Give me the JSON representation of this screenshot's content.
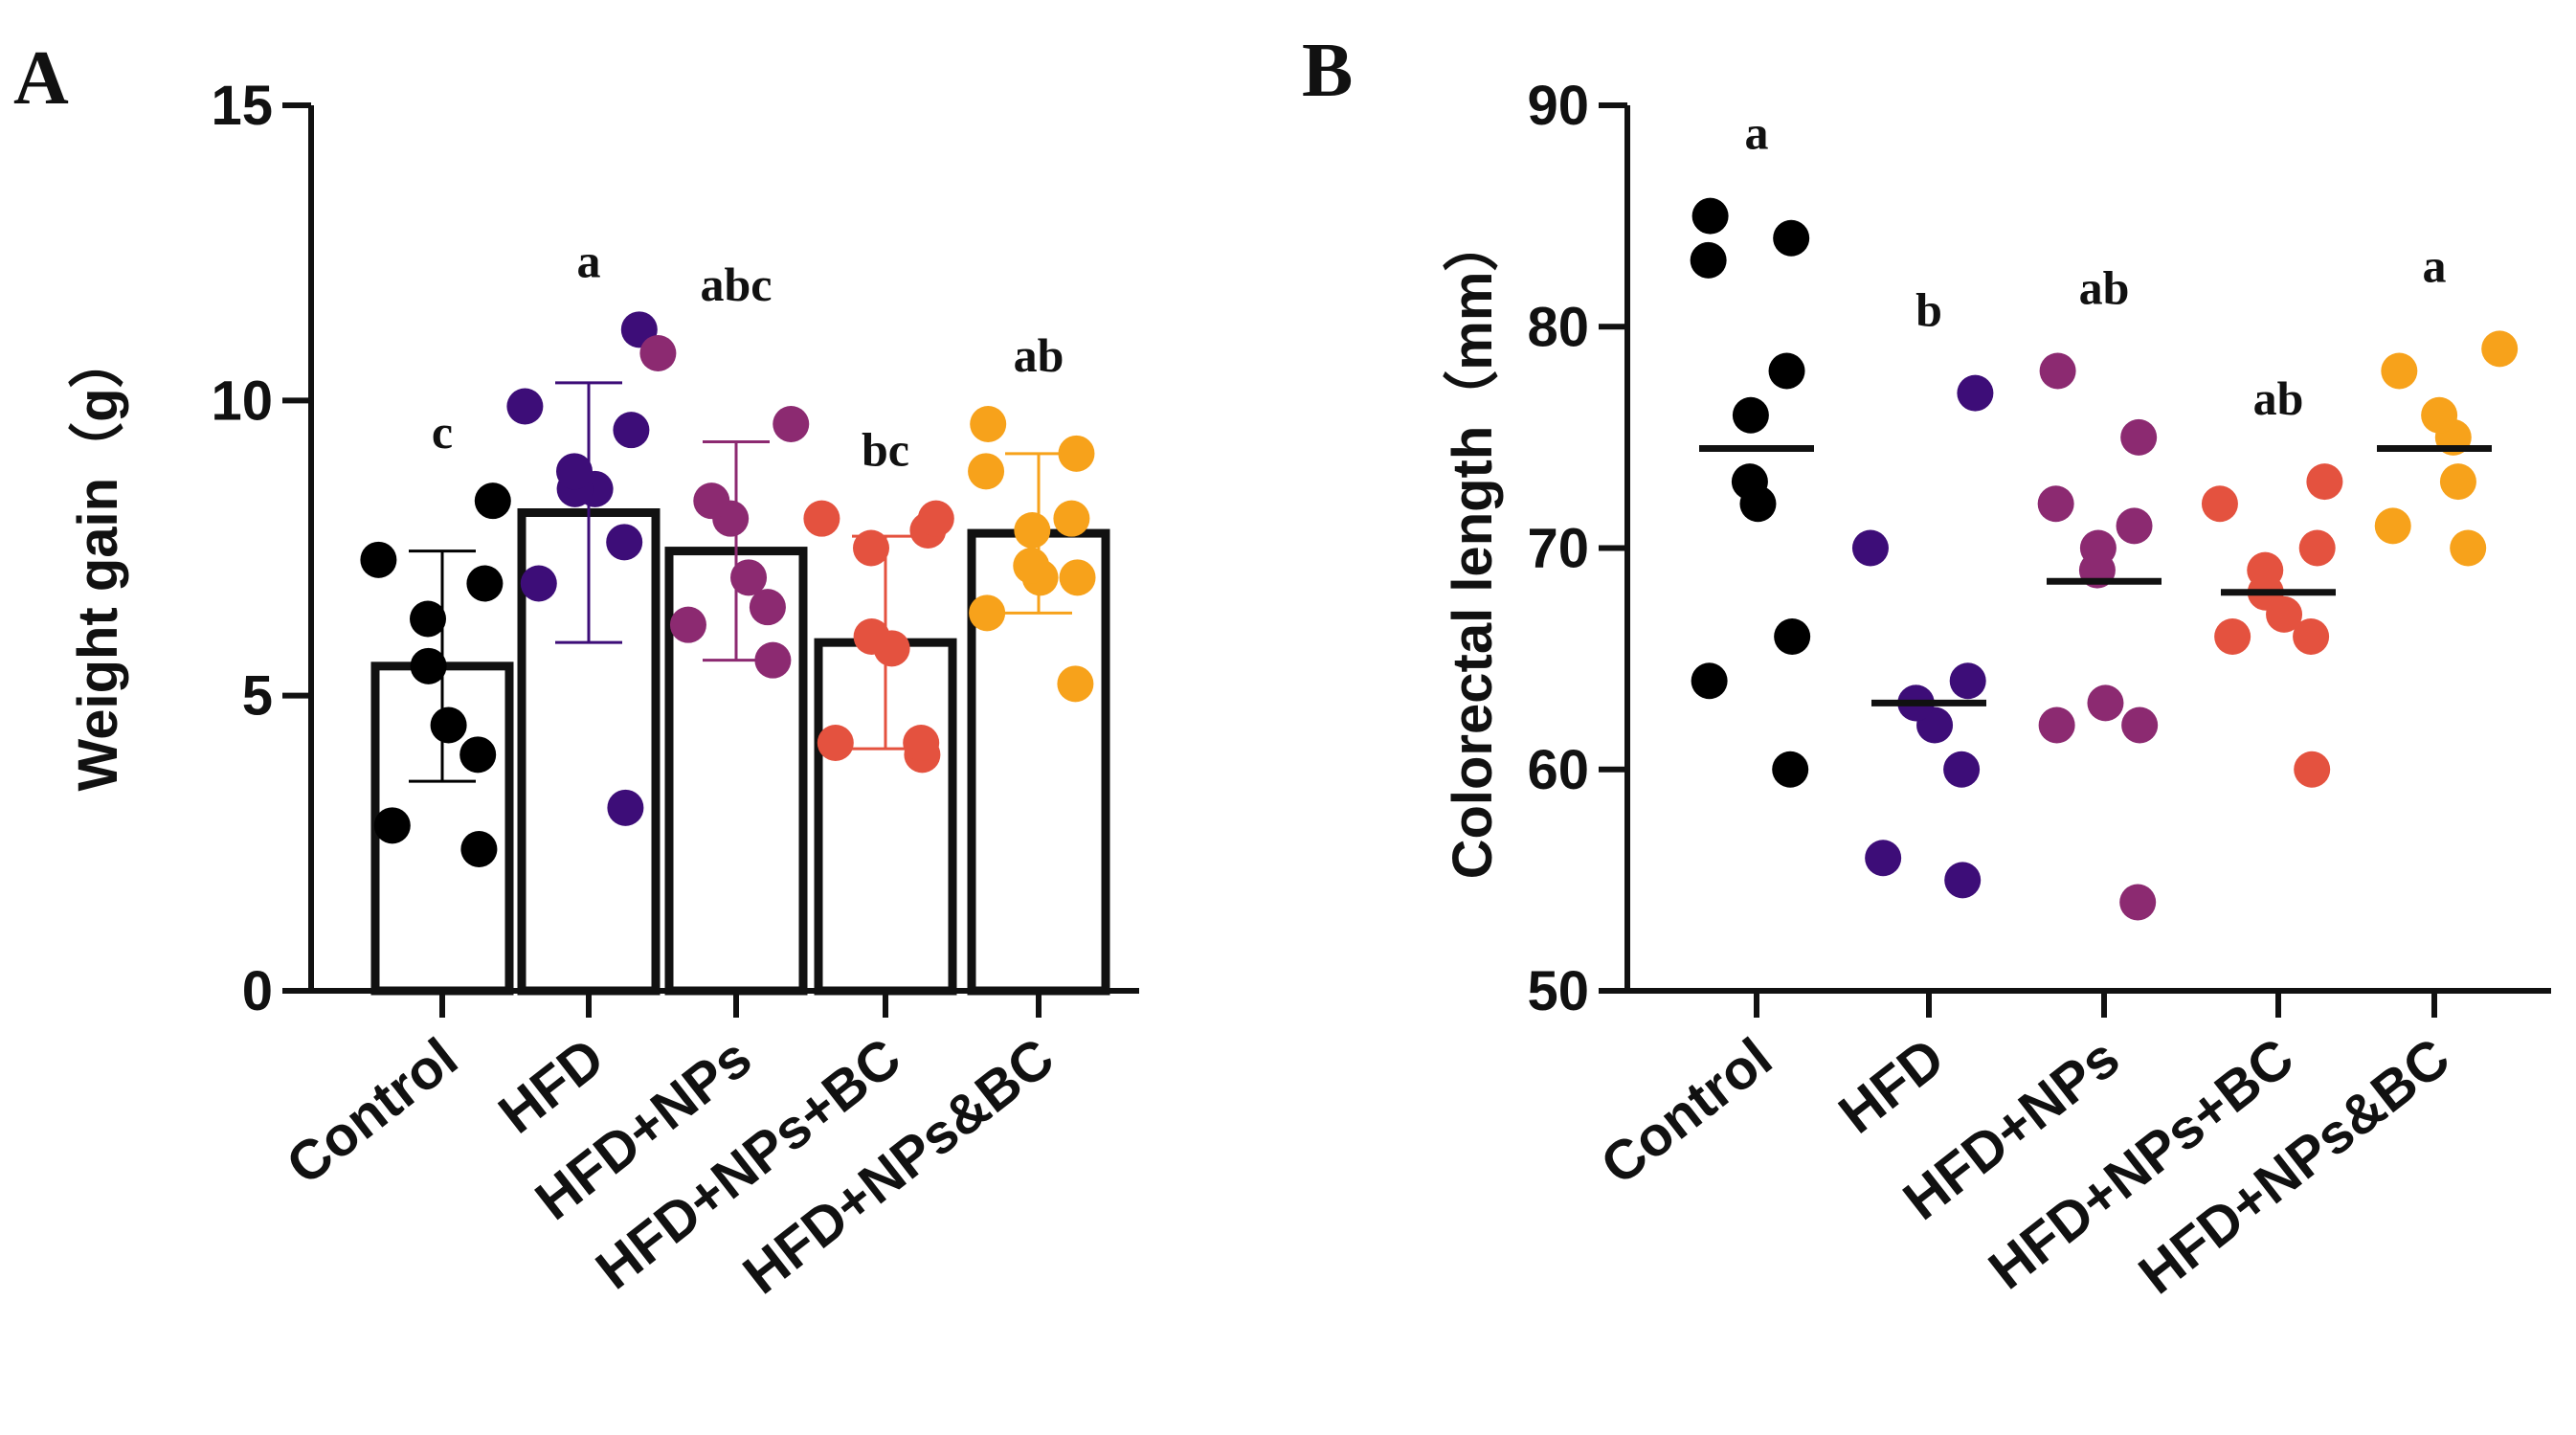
{
  "figure": {
    "panel_a_label": "A",
    "panel_b_label": "B"
  },
  "colors": {
    "axis": "#111111",
    "Control": "#000000",
    "HFD": "#3d0d78",
    "HFD+NPs": "#8c2a71",
    "HFD+NPs+BC": "#e4523f",
    "HFD+NPs&BC": "#f7a21b"
  },
  "chart_data": [
    {
      "type": "bar",
      "panel": "A",
      "title": "",
      "xlabel": "",
      "ylabel": "Weight gain（g）",
      "ylim": [
        0,
        15
      ],
      "yticks": [
        0,
        5,
        10,
        15
      ],
      "categories": [
        "Control",
        "HFD",
        "HFD+NPs",
        "HFD+NPs+BC",
        "HFD+NPs&BC"
      ],
      "values": [
        5.5,
        8.1,
        7.45,
        5.9,
        7.75
      ],
      "sd": [
        1.95,
        2.2,
        1.85,
        1.8,
        1.35
      ],
      "significance": [
        "c",
        "a",
        "abc",
        "bc",
        "ab"
      ],
      "points": [
        [
          2.4,
          2.8,
          4.0,
          4.5,
          5.5,
          6.3,
          6.9,
          7.3,
          8.3
        ],
        [
          3.1,
          6.9,
          7.6,
          8.5,
          8.5,
          8.8,
          9.5,
          9.9,
          11.2
        ],
        [
          5.6,
          6.2,
          6.5,
          7.0,
          8.0,
          8.3,
          9.6,
          10.8
        ],
        [
          4.0,
          4.2,
          4.2,
          5.8,
          6.0,
          7.5,
          7.8,
          8.0,
          8.0
        ],
        [
          5.2,
          6.4,
          7.0,
          7.0,
          7.2,
          7.8,
          8.0,
          8.8,
          9.1,
          9.6
        ]
      ]
    },
    {
      "type": "scatter",
      "panel": "B",
      "title": "",
      "xlabel": "",
      "ylabel": "Colorectal length（mm）",
      "ylim": [
        50,
        90
      ],
      "yticks": [
        50,
        60,
        70,
        80,
        90
      ],
      "categories": [
        "Control",
        "HFD",
        "HFD+NPs",
        "HFD+NPs+BC",
        "HFD+NPs&BC"
      ],
      "means": [
        74.5,
        63,
        68.5,
        68,
        74.5
      ],
      "significance": [
        "a",
        "b",
        "ab",
        "ab",
        "a"
      ],
      "points": [
        [
          60,
          64,
          66,
          72,
          73,
          76,
          78,
          83,
          84,
          85
        ],
        [
          55,
          56,
          60,
          62,
          63,
          63,
          64,
          70,
          77
        ],
        [
          54,
          62,
          62,
          63,
          69,
          70,
          71,
          72,
          75,
          78
        ],
        [
          60,
          66,
          66,
          67,
          68,
          69,
          70,
          72,
          73
        ],
        [
          70,
          71,
          73,
          75,
          76,
          78,
          79
        ]
      ]
    }
  ]
}
